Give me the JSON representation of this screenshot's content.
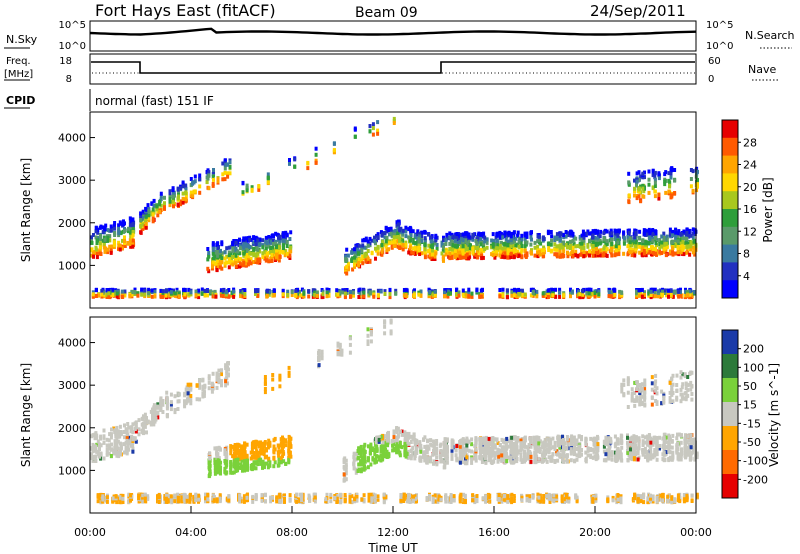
{
  "header": {
    "station": "Fort Hays East (fitACF)",
    "beam": "Beam 09",
    "date": "24/Sep/2011"
  },
  "strips": {
    "nsky_label": "N.Sky",
    "nsky_ticks": [
      "10^5",
      "10^0"
    ],
    "nsearch_label": "N.Search",
    "nsearch_ticks": [
      "10^5",
      "10^0"
    ],
    "freq_label_1": "Freq.",
    "freq_label_2": "[MHz]",
    "freq_ticks": [
      "18",
      "8"
    ],
    "nave_label": "Nave",
    "nave_ticks": [
      "60",
      "0"
    ],
    "cpid_label": "CPID",
    "cpid_text": "normal (fast) 151 IF"
  },
  "chart_data": [
    {
      "type": "heatmap",
      "name": "power",
      "ylabel": "Slant Range [km]",
      "yticks": [
        "4000",
        "3000",
        "2000",
        "1000"
      ],
      "colorbar_label": "Power [dB]",
      "colorbar_ticks": [
        "28",
        "24",
        "20",
        "16",
        "12",
        "8",
        "4"
      ],
      "colors": [
        "#e60000",
        "#ff5a00",
        "#ffa500",
        "#ffd700",
        "#a8c81e",
        "#2e9e3a",
        "#5a9a6a",
        "#3a7aa0",
        "#2230c0",
        "#0000ff"
      ]
    },
    {
      "type": "heatmap",
      "name": "velocity",
      "ylabel": "Slant Range [km]",
      "yticks": [
        "4000",
        "3000",
        "2000",
        "1000"
      ],
      "colorbar_label": "Velocity [m s^-1]",
      "colorbar_ticks": [
        "200",
        "100",
        "50",
        "15",
        "-15",
        "-50",
        "-100",
        "-200"
      ],
      "colors": [
        "#1a3aa8",
        "#2c7a3a",
        "#7ad13a",
        "#c8c8c0",
        "#ffa500",
        "#ff6a00",
        "#e60000"
      ]
    }
  ],
  "xaxis": {
    "label": "Time UT",
    "ticks": [
      "00:00",
      "04:00",
      "08:00",
      "12:00",
      "16:00",
      "20:00",
      "00:00"
    ]
  }
}
